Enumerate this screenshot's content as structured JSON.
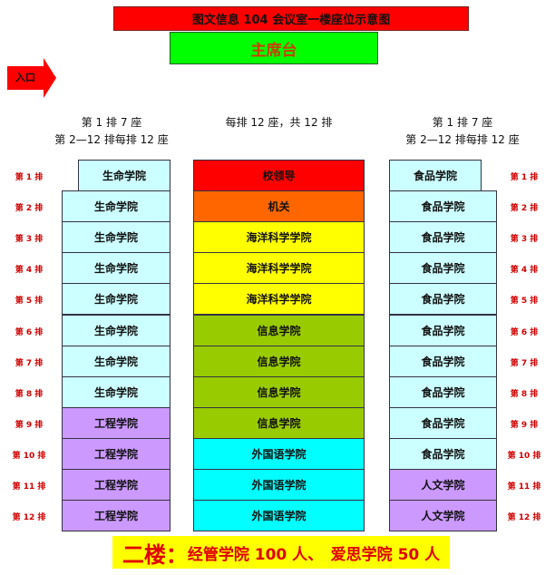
{
  "title": "图文信息 104 会议室一楼座位示意图",
  "stage": "主席台",
  "entrance": "入口",
  "left_note": [
    "第 1 排 7 座",
    "第 2—12 排每排 12 座"
  ],
  "center_note": "每排 12 座，共 12 排",
  "right_note": [
    "第 1 排 7 座",
    "第 2—12 排每排 12 座"
  ],
  "row_labels": [
    "第 1 排",
    "第 2 排",
    "第 3 排",
    "第 4 排",
    "第 5 排",
    "第 6 排",
    "第 7 排",
    "第 8 排",
    "第 9 排",
    "第 10 排",
    "第 11 排",
    "第 12 排"
  ],
  "left": [
    "生命学院",
    "生命学院",
    "生命学院",
    "生命学院",
    "生命学院",
    "生命学院",
    "生命学院",
    "生命学院",
    "工程学院",
    "工程学院",
    "工程学院",
    "工程学院"
  ],
  "center": [
    "校领导",
    "机关",
    "海洋科学学院",
    "海洋科学学院",
    "海洋科学学院",
    "信息学院",
    "信息学院",
    "信息学院",
    "信息学院",
    "外国语学院",
    "外国语学院",
    "外国语学院"
  ],
  "right": [
    "食品学院",
    "食品学院",
    "食品学院",
    "食品学院",
    "食品学院",
    "食品学院",
    "食品学院",
    "食品学院",
    "食品学院",
    "食品学院",
    "人文学院",
    "人文学院"
  ],
  "colors": {
    "生命学院": "#ccffff",
    "食品学院": "#ccffff",
    "工程学院": "#cc99ff",
    "人文学院": "#cc99ff",
    "校领导": "#ff0000",
    "机关": "#ff6600",
    "海洋科学学院": "#ffff00",
    "信息学院": "#99cc00",
    "外国语学院": "#00ffff"
  },
  "floor2": {
    "label": "二楼：",
    "text": "经管学院 100 人、　爱思学院 50 人"
  }
}
